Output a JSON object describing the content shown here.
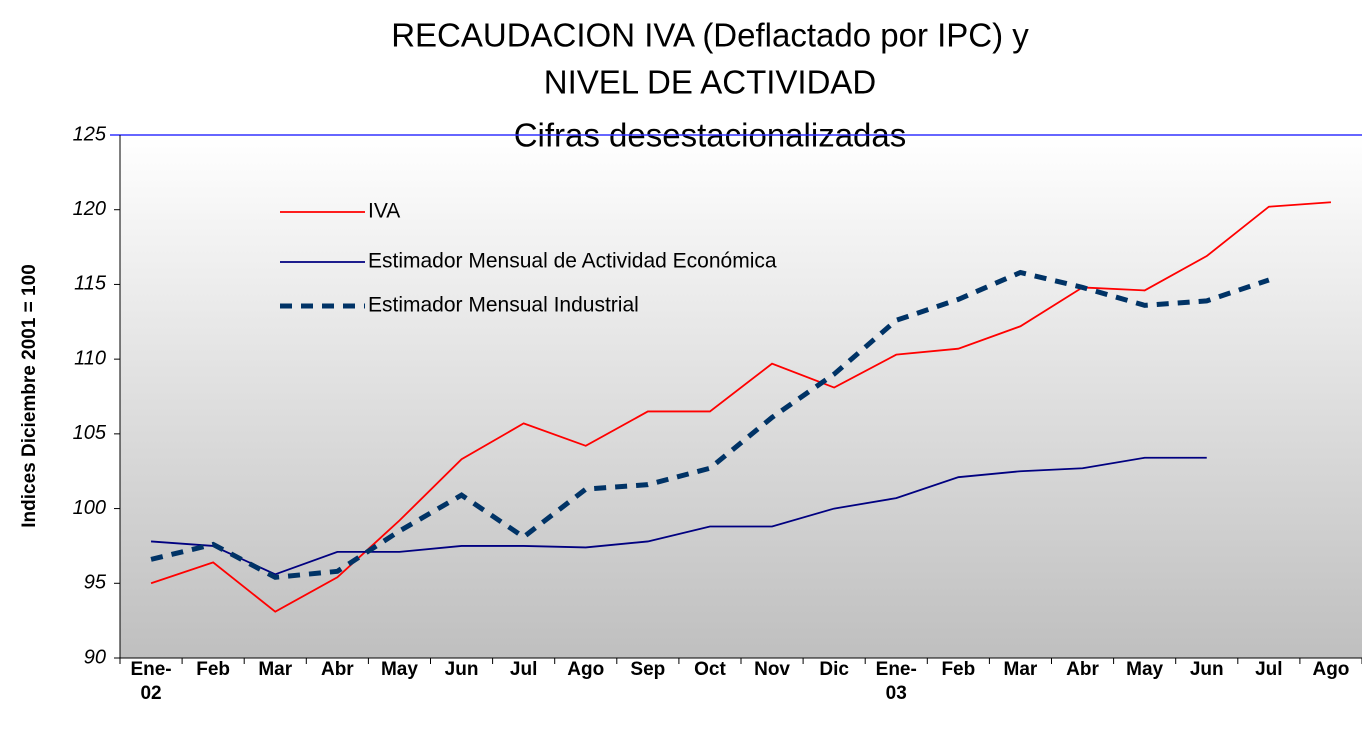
{
  "chart_data": {
    "type": "line",
    "title": [
      "RECAUDACION IVA (Deflactado por IPC) y",
      "NIVEL DE ACTIVIDAD"
    ],
    "subtitle": "Cifras desestacionalizadas",
    "y_label": "Indices Diciembre 2001 = 100",
    "categories": [
      "Ene-\n02",
      "Feb",
      "Mar",
      "Abr",
      "May",
      "Jun",
      "Jul",
      "Ago",
      "Sep",
      "Oct",
      "Nov",
      "Dic",
      "Ene-\n03",
      "Feb",
      "Mar",
      "Abr",
      "May",
      "Jun",
      "Jul",
      "Ago"
    ],
    "series": [
      {
        "name": "IVA",
        "color": "#ff0000",
        "values": [
          95.0,
          96.4,
          93.1,
          95.4,
          99.2,
          103.3,
          105.7,
          104.2,
          106.5,
          106.5,
          109.7,
          108.1,
          110.3,
          110.7,
          112.2,
          114.8,
          114.6,
          116.9,
          120.2,
          120.5
        ]
      },
      {
        "name": "Estimador Mensual de Actividad Económica",
        "color": "#000080",
        "values": [
          97.8,
          97.5,
          95.6,
          97.1,
          97.1,
          97.5,
          97.5,
          97.4,
          97.8,
          98.8,
          98.8,
          100.0,
          100.7,
          102.1,
          102.5,
          102.7,
          103.4,
          103.4,
          null,
          null
        ]
      },
      {
        "name": "Estimador Mensual Industrial",
        "color": "#003366",
        "dashed": true,
        "values": [
          96.6,
          97.6,
          95.4,
          95.8,
          98.5,
          100.9,
          98.1,
          101.3,
          101.6,
          102.7,
          106.1,
          109.0,
          112.6,
          114.0,
          115.8,
          114.8,
          113.6,
          113.9,
          115.3,
          null
        ]
      }
    ],
    "ylim": [
      90,
      125
    ],
    "yticks": [
      90,
      95,
      100,
      105,
      110,
      115,
      120,
      125
    ],
    "grid": false,
    "legend": "upper left"
  }
}
